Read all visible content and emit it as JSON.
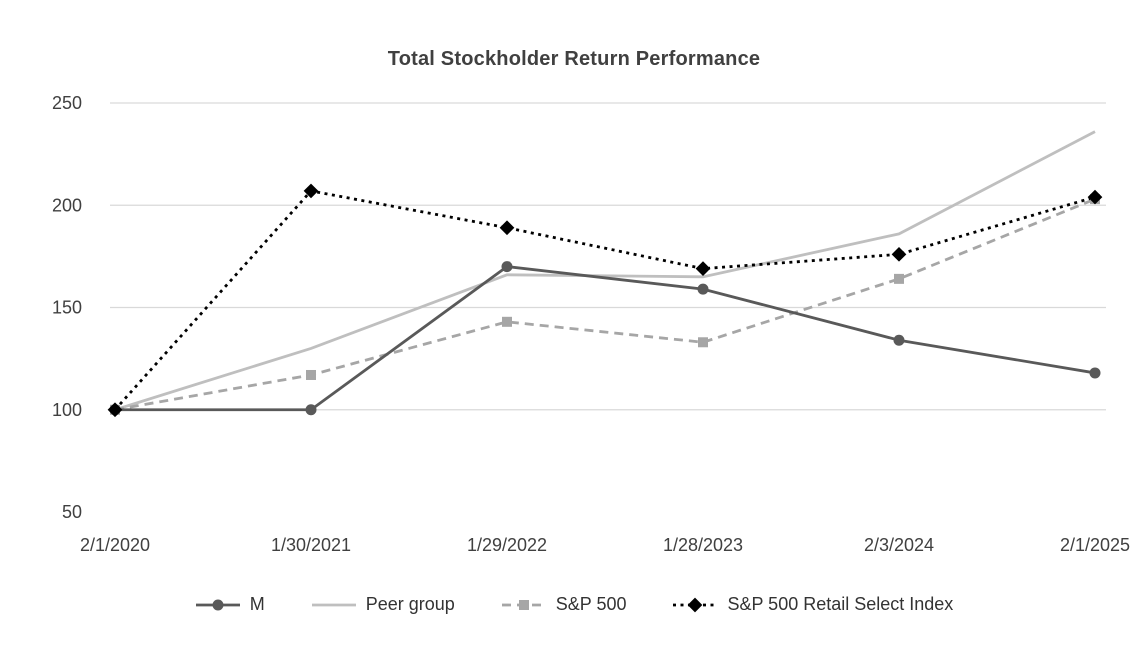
{
  "chart_data": {
    "type": "line",
    "title": "Total Stockholder Return Performance",
    "x": [
      "2/1/2020",
      "1/30/2021",
      "1/29/2022",
      "1/28/2023",
      "2/3/2024",
      "2/1/2025"
    ],
    "series": [
      {
        "name": "M",
        "values": [
          100,
          100,
          170,
          159,
          134,
          118
        ],
        "color": "#595959",
        "line_style": "solid",
        "marker": "circle"
      },
      {
        "name": "Peer group",
        "values": [
          100,
          130,
          166,
          165,
          186,
          236
        ],
        "color": "#bfbfbf",
        "line_style": "solid",
        "marker": "none"
      },
      {
        "name": "S&P 500",
        "values": [
          100,
          117,
          143,
          133,
          164,
          203
        ],
        "color": "#a6a6a6",
        "line_style": "dashed",
        "marker": "square"
      },
      {
        "name": "S&P 500 Retail Select Index",
        "values": [
          100,
          207,
          189,
          169,
          176,
          204
        ],
        "color": "#000000",
        "line_style": "dotted",
        "marker": "diamond"
      }
    ],
    "ylim": [
      50,
      250
    ],
    "yticks": [
      50,
      100,
      150,
      200,
      250
    ],
    "grid": true,
    "legend_position": "bottom",
    "gridline_color": "#d9d9d9",
    "text_color": "#404040",
    "xlabel": "",
    "ylabel": ""
  }
}
